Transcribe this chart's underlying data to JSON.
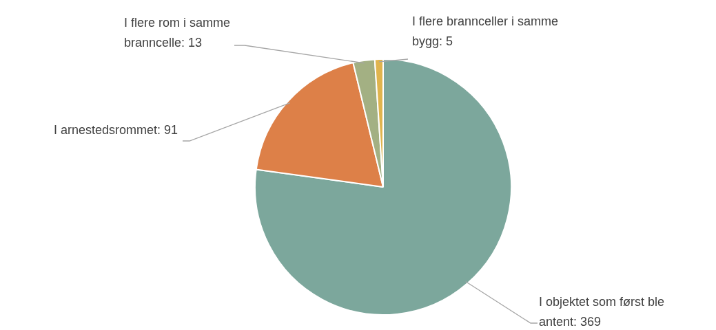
{
  "chart_data": {
    "type": "pie",
    "categories": [
      "I objektet som først ble antent: 369",
      "I arnestedsrommet: 91",
      "I flere rom i samme branncelle: 13",
      "I flere brannceller i samme bygg: 5"
    ],
    "values": [
      369,
      91,
      13,
      5
    ],
    "colors": [
      "#7ca79c",
      "#dd8048",
      "#a3b083",
      "#e0b44e"
    ],
    "legend": false
  }
}
